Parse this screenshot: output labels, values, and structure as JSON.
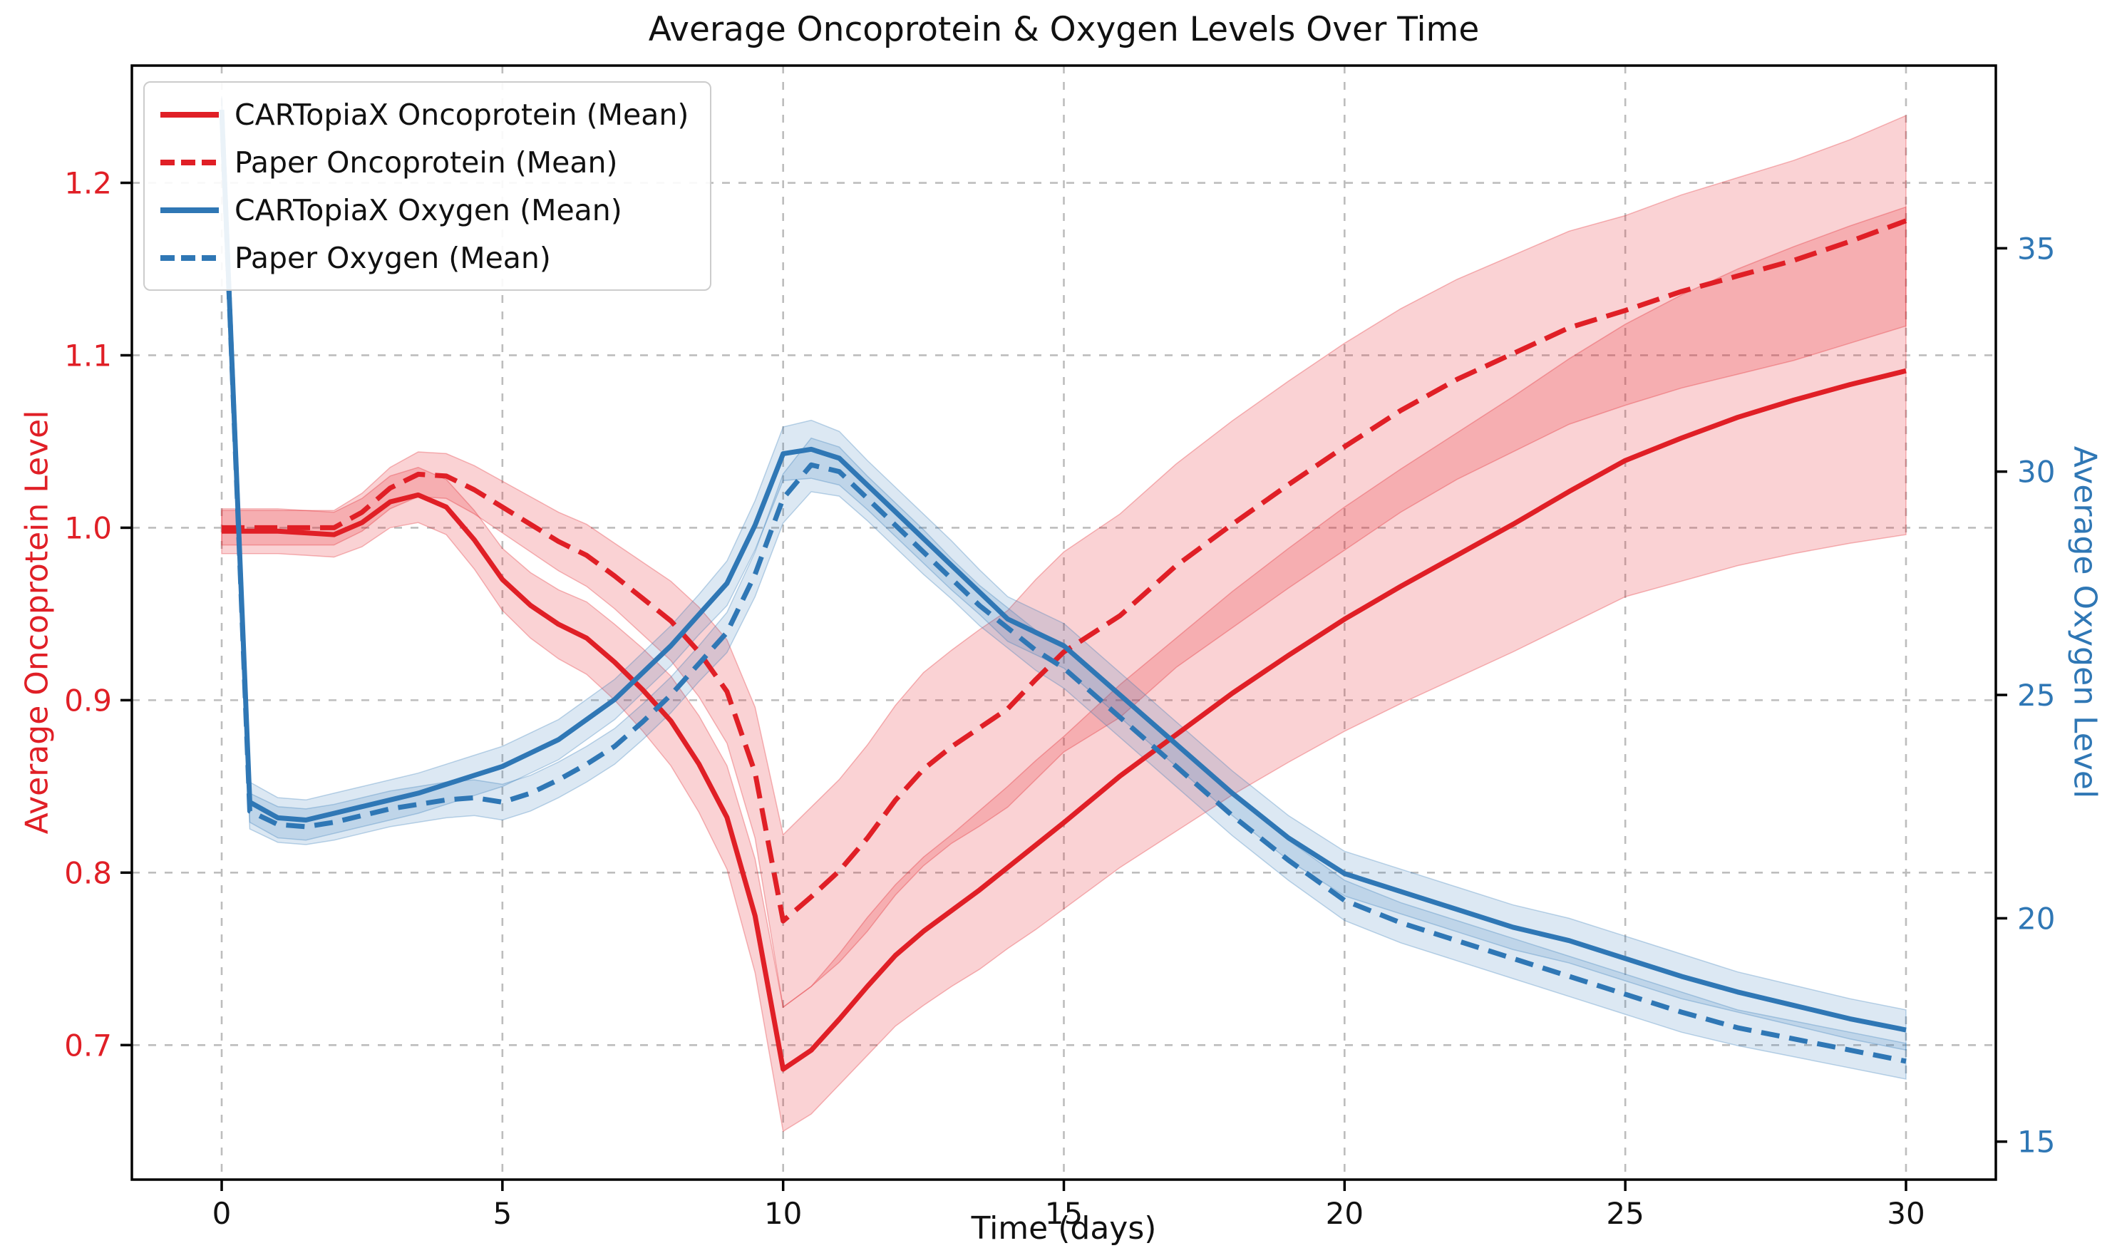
{
  "chart_data": {
    "type": "line",
    "title": "Average Oncoprotein & Oxygen Levels Over Time",
    "xlabel": "Time (days)",
    "grid": true,
    "legend_position": "upper left",
    "x_range": [
      -1.6,
      31.6
    ],
    "x_ticks": [
      0,
      5,
      10,
      15,
      20,
      25,
      30
    ],
    "left_axis": {
      "label": "Average Oncoprotein Level",
      "color": "#e01f26",
      "range": [
        0.622,
        1.268
      ],
      "ticks": [
        0.7,
        0.8,
        0.9,
        1.0,
        1.1,
        1.2
      ]
    },
    "right_axis": {
      "label": "Average Oxygen Level",
      "color": "#2f77b5",
      "range": [
        14.15,
        39.09
      ],
      "ticks": [
        15,
        20,
        25,
        30,
        35
      ]
    },
    "x": [
      0,
      0.5,
      1,
      1.5,
      2,
      2.5,
      3,
      3.5,
      4,
      4.5,
      5,
      5.5,
      6,
      6.5,
      7,
      7.5,
      8,
      8.5,
      9,
      9.5,
      10,
      10.5,
      11,
      11.5,
      12,
      12.5,
      13,
      13.5,
      14,
      14.5,
      15,
      16,
      17,
      18,
      19,
      20,
      21,
      22,
      23,
      24,
      25,
      26,
      27,
      28,
      29,
      30
    ],
    "series": [
      {
        "name": "CARTopiaX Oncoprotein (Mean)",
        "color": "#e01f26",
        "band_color": "rgba(228,30,40,0.20)",
        "style": "solid",
        "axis": "left",
        "y": [
          0.998,
          0.998,
          0.998,
          0.997,
          0.996,
          1.003,
          1.015,
          1.019,
          1.012,
          0.993,
          0.97,
          0.955,
          0.944,
          0.936,
          0.922,
          0.906,
          0.888,
          0.863,
          0.832,
          0.775,
          0.686,
          0.697,
          0.715,
          0.734,
          0.752,
          0.766,
          0.778,
          0.79,
          0.803,
          0.816,
          0.829,
          0.856,
          0.88,
          0.904,
          0.926,
          0.947,
          0.966,
          0.984,
          1.002,
          1.021,
          1.039,
          1.052,
          1.064,
          1.074,
          1.083,
          1.091
        ],
        "band": [
          0.013,
          0.013,
          0.013,
          0.013,
          0.013,
          0.014,
          0.015,
          0.016,
          0.016,
          0.017,
          0.018,
          0.019,
          0.02,
          0.021,
          0.022,
          0.024,
          0.026,
          0.028,
          0.03,
          0.033,
          0.036,
          0.037,
          0.038,
          0.04,
          0.041,
          0.043,
          0.044,
          0.046,
          0.047,
          0.049,
          0.05,
          0.053,
          0.056,
          0.059,
          0.062,
          0.065,
          0.068,
          0.071,
          0.074,
          0.077,
          0.079,
          0.083,
          0.086,
          0.089,
          0.092,
          0.095
        ]
      },
      {
        "name": "Paper Oncoprotein (Mean)",
        "color": "#e01f26",
        "band_color": "rgba(228,30,40,0.20)",
        "style": "dashed",
        "axis": "left",
        "y": [
          1.0,
          1.0,
          1.0,
          1.0,
          1.0,
          1.009,
          1.023,
          1.031,
          1.03,
          1.022,
          1.012,
          1.002,
          0.992,
          0.984,
          0.972,
          0.959,
          0.946,
          0.928,
          0.905,
          0.858,
          0.772,
          0.786,
          0.801,
          0.82,
          0.842,
          0.86,
          0.873,
          0.884,
          0.895,
          0.912,
          0.928,
          0.949,
          0.978,
          1.002,
          1.025,
          1.047,
          1.068,
          1.086,
          1.101,
          1.116,
          1.126,
          1.137,
          1.146,
          1.155,
          1.166,
          1.178
        ],
        "band": [
          0.01,
          0.01,
          0.01,
          0.01,
          0.01,
          0.011,
          0.012,
          0.013,
          0.013,
          0.014,
          0.015,
          0.016,
          0.017,
          0.018,
          0.019,
          0.021,
          0.023,
          0.026,
          0.03,
          0.038,
          0.05,
          0.052,
          0.053,
          0.054,
          0.055,
          0.056,
          0.056,
          0.057,
          0.057,
          0.058,
          0.058,
          0.059,
          0.059,
          0.06,
          0.06,
          0.06,
          0.059,
          0.058,
          0.057,
          0.056,
          0.055,
          0.056,
          0.057,
          0.058,
          0.059,
          0.061
        ]
      },
      {
        "name": "CARTopiaX Oxygen (Mean)",
        "color": "#2f77b5",
        "band_color": "rgba(47,119,181,0.17)",
        "style": "solid",
        "axis": "right",
        "y": [
          38.1,
          22.6,
          22.25,
          22.2,
          22.35,
          22.5,
          22.65,
          22.8,
          23.0,
          23.2,
          23.4,
          23.7,
          24.0,
          24.45,
          24.9,
          25.5,
          26.1,
          26.8,
          27.5,
          28.8,
          30.4,
          30.5,
          30.3,
          29.7,
          29.1,
          28.5,
          27.9,
          27.3,
          26.7,
          26.4,
          26.1,
          25.0,
          23.9,
          22.8,
          21.8,
          21.0,
          20.6,
          20.2,
          19.8,
          19.5,
          19.1,
          18.7,
          18.35,
          18.05,
          17.75,
          17.5
        ],
        "band": [
          0.3,
          0.45,
          0.45,
          0.45,
          0.45,
          0.45,
          0.45,
          0.45,
          0.45,
          0.45,
          0.45,
          0.45,
          0.45,
          0.45,
          0.45,
          0.45,
          0.45,
          0.45,
          0.5,
          0.55,
          0.6,
          0.65,
          0.6,
          0.55,
          0.55,
          0.55,
          0.55,
          0.5,
          0.5,
          0.5,
          0.5,
          0.5,
          0.5,
          0.5,
          0.5,
          0.5,
          0.5,
          0.5,
          0.5,
          0.5,
          0.5,
          0.5,
          0.45,
          0.45,
          0.45,
          0.45
        ]
      },
      {
        "name": "Paper Oxygen (Mean)",
        "color": "#2f77b5",
        "band_color": "rgba(47,119,181,0.17)",
        "style": "dashed",
        "axis": "right",
        "y": [
          38.1,
          22.4,
          22.1,
          22.05,
          22.15,
          22.3,
          22.45,
          22.55,
          22.65,
          22.7,
          22.6,
          22.8,
          23.1,
          23.45,
          23.85,
          24.4,
          25.0,
          25.7,
          26.4,
          27.7,
          29.4,
          30.15,
          30.0,
          29.4,
          28.8,
          28.2,
          27.6,
          27.0,
          26.5,
          26.0,
          25.6,
          24.5,
          23.4,
          22.3,
          21.3,
          20.4,
          19.9,
          19.5,
          19.1,
          18.7,
          18.3,
          17.9,
          17.55,
          17.3,
          17.05,
          16.8
        ],
        "band": [
          0.3,
          0.4,
          0.4,
          0.4,
          0.4,
          0.4,
          0.4,
          0.4,
          0.4,
          0.4,
          0.4,
          0.4,
          0.4,
          0.4,
          0.4,
          0.4,
          0.4,
          0.4,
          0.45,
          0.5,
          0.55,
          0.6,
          0.55,
          0.5,
          0.5,
          0.5,
          0.45,
          0.45,
          0.45,
          0.45,
          0.45,
          0.45,
          0.45,
          0.45,
          0.45,
          0.45,
          0.45,
          0.45,
          0.45,
          0.45,
          0.45,
          0.45,
          0.4,
          0.4,
          0.4,
          0.4
        ]
      }
    ],
    "style": {
      "grid_color": "#bdbdbd",
      "spine_color": "#000000",
      "tick_color": "#000000",
      "x_tick_label_color": "#111111",
      "line_width": 7
    }
  }
}
